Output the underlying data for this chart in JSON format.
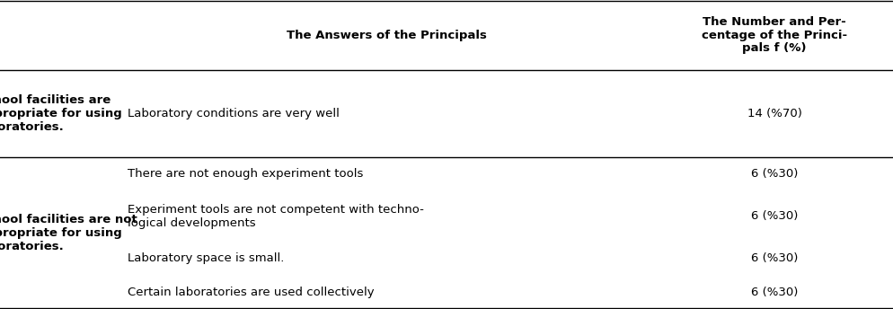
{
  "col_header_1": "The Answers of the Principals",
  "col_header_2": "The Number and Per-\ncentage of the Princi-\npals f (%)",
  "col1_label_yes": "School facilities are\nappropriate for using\nlaboratories.",
  "col1_label_no": "School facilities are not\nappropriate for using\nlaboratories.",
  "rows_yes": [
    {
      "answer": "Laboratory conditions are very well",
      "value": "14 (%70)"
    }
  ],
  "rows_no": [
    {
      "answer": "There are not enough experiment tools",
      "value": "6 (%30)"
    },
    {
      "answer": "Experiment tools are not competent with techno-\nlogical developments",
      "value": "6 (%30)"
    },
    {
      "answer": "Laboratory space is small.",
      "value": "6 (%30)"
    },
    {
      "answer": "Certain laboratories are used collectively",
      "value": "6 (%30)"
    }
  ],
  "bg_color": "#ffffff",
  "text_color": "#000000",
  "line_color": "#000000",
  "header_fontsize": 9.5,
  "body_fontsize": 9.5,
  "label_fontsize": 9.5,
  "fig_width": 9.94,
  "fig_height": 3.44,
  "dpi": 100
}
